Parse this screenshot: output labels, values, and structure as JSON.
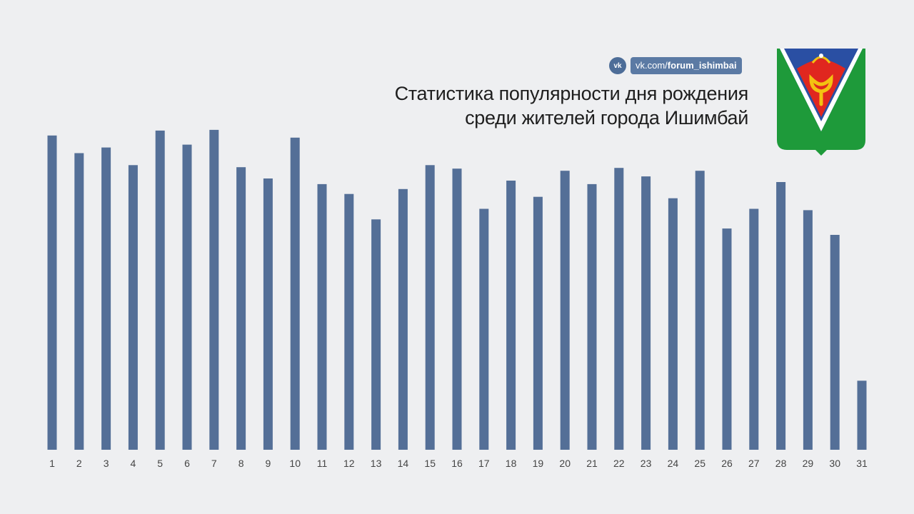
{
  "header": {
    "vk_logo": "vk",
    "link_prefix": "vk.com/",
    "link_handle": "forum_ishimbai",
    "title_line1": "Статистика популярности дня рождения",
    "title_line2": "среди жителей города Ишимбай"
  },
  "emblem": {
    "icon": "city-coat-of-arms-icon"
  },
  "colors": {
    "background": "#eeeff1",
    "bar": "#546f97",
    "tick_text": "#444444",
    "accent": "#5b7aa4",
    "emblem_green": "#1e9a3a",
    "emblem_blue": "#2a4fa3",
    "emblem_red": "#e0271f",
    "emblem_gold": "#f3c211"
  },
  "chart_data": {
    "type": "bar",
    "title": "Статистика популярности дня рождения среди жителей города Ишимбай",
    "xlabel": "",
    "ylabel": "",
    "categories": [
      "1",
      "2",
      "3",
      "4",
      "5",
      "6",
      "7",
      "8",
      "9",
      "10",
      "11",
      "12",
      "13",
      "14",
      "15",
      "16",
      "17",
      "18",
      "19",
      "20",
      "21",
      "22",
      "23",
      "24",
      "25",
      "26",
      "27",
      "28",
      "29",
      "30",
      "31"
    ],
    "values": [
      446,
      421,
      429,
      404,
      453,
      433,
      454,
      401,
      385,
      443,
      377,
      363,
      327,
      370,
      404,
      399,
      342,
      382,
      359,
      396,
      377,
      400,
      388,
      357,
      396,
      314,
      342,
      380,
      340,
      305,
      98
    ],
    "ylim": [
      0,
      460
    ],
    "grid": false,
    "legend": "none"
  }
}
